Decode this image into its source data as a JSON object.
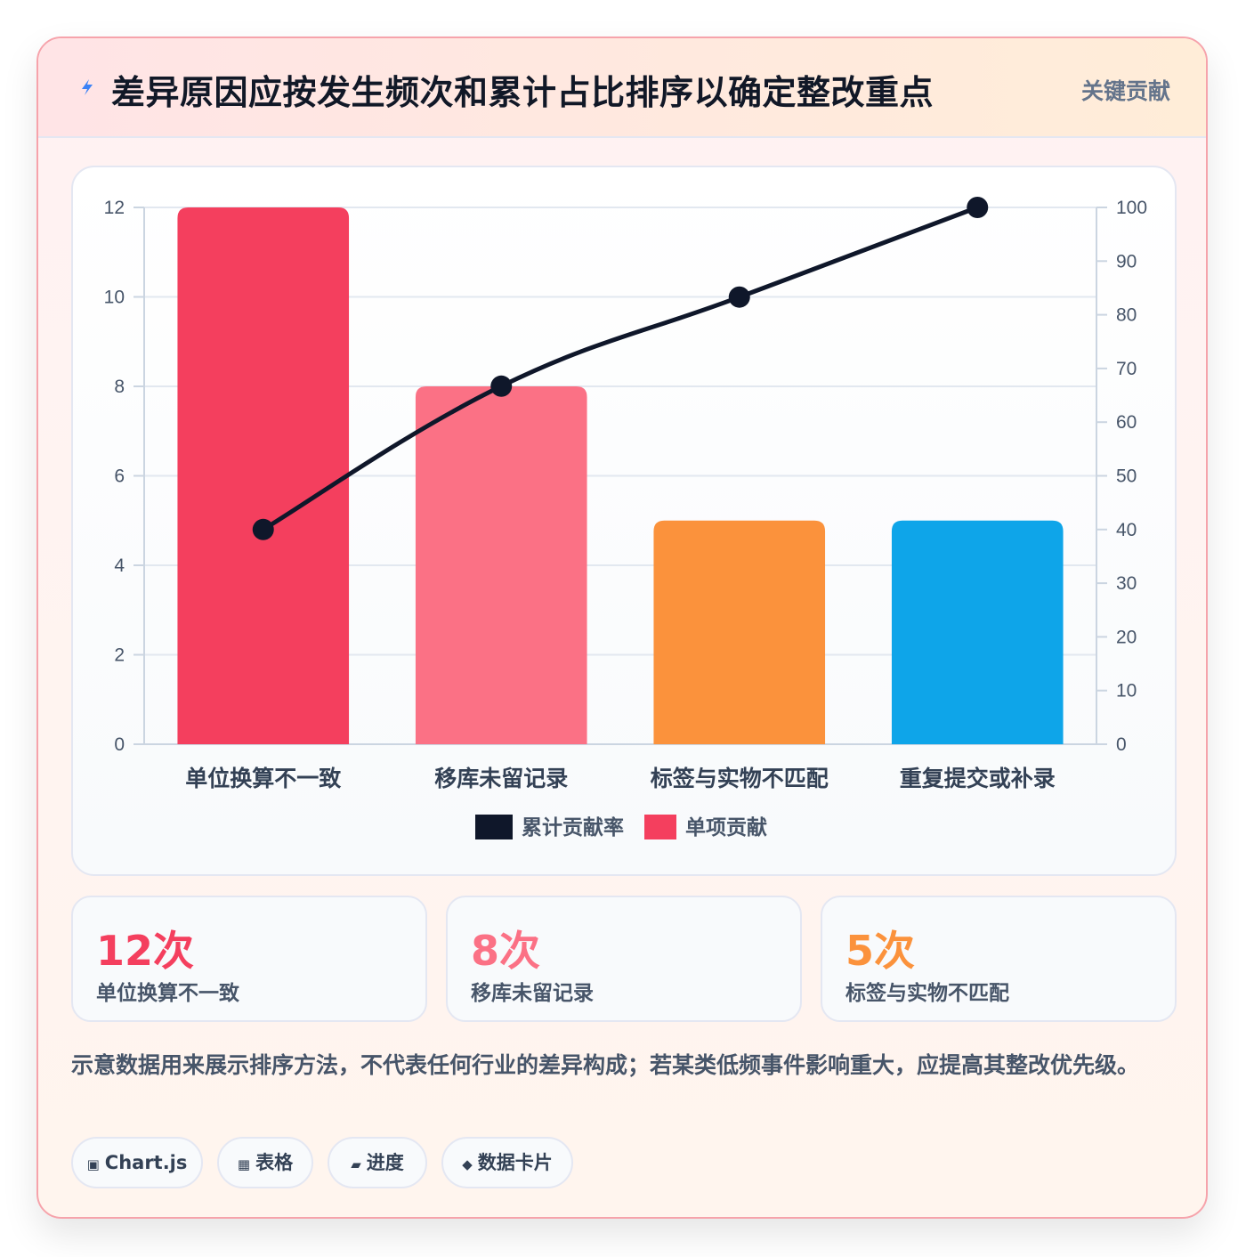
{
  "header": {
    "title": "差异原因应按发生频次和累计占比排序以确定整改重点",
    "badge": "关键贡献",
    "icon": "lightning-icon"
  },
  "chart_data": {
    "type": "bar",
    "categories": [
      "单位换算不一致",
      "移库未留记录",
      "标签与实物不匹配",
      "重复提交或补录"
    ],
    "series": [
      {
        "name": "单项贡献",
        "type": "bar",
        "axis": "left",
        "values": [
          12,
          8,
          5,
          5
        ],
        "colors": [
          "#f43f5e",
          "#fb7185",
          "#fb923c",
          "#0ea5e9"
        ]
      },
      {
        "name": "累计贡献率",
        "type": "line",
        "axis": "right",
        "values": [
          40,
          66.7,
          83.3,
          100
        ],
        "color": "#0f172a"
      }
    ],
    "y_left": {
      "min": 0,
      "max": 12,
      "ticks": [
        "0",
        "2",
        "4",
        "6",
        "8",
        "10",
        "12"
      ]
    },
    "y_right": {
      "min": 0,
      "max": 100,
      "ticks": [
        "0",
        "10",
        "20",
        "30",
        "40",
        "50",
        "60",
        "70",
        "80",
        "90",
        "100"
      ]
    },
    "legend": [
      {
        "label": "累计贡献率",
        "color": "#0f172a"
      },
      {
        "label": "单项贡献",
        "color": "#f43f5e"
      }
    ],
    "legend_position": "bottom",
    "grid": true
  },
  "stats": [
    {
      "value": "12次",
      "label": "单位换算不一致",
      "color": "#f43f5e"
    },
    {
      "value": "8次",
      "label": "移库未留记录",
      "color": "#fb7185"
    },
    {
      "value": "5次",
      "label": "标签与实物不匹配",
      "color": "#fb923c"
    }
  ],
  "note": "示意数据用来展示排序方法，不代表任何行业的差异构成；若某类低频事件影响重大，应提高其整改优先级。",
  "chips": [
    {
      "icon": "chart-icon",
      "glyph": "▣",
      "label": "Chart.js"
    },
    {
      "icon": "table-icon",
      "glyph": "▦",
      "label": "表格"
    },
    {
      "icon": "progress-icon",
      "glyph": "▰",
      "label": "进度"
    },
    {
      "icon": "data-card-icon",
      "glyph": "◆",
      "label": "数据卡片"
    }
  ]
}
